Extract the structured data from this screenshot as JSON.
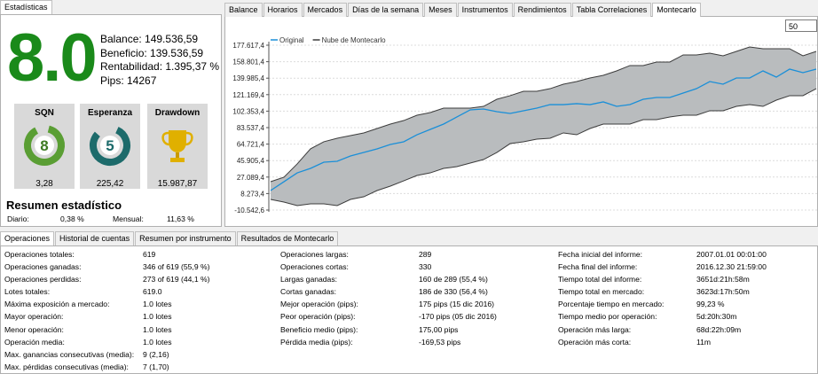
{
  "left_tab": "Estadísticas",
  "score": "8.0",
  "summary": [
    "Balance: 149.536,59",
    "Beneficio: 139.536,59",
    "Rentabilidad: 1.395,37 %",
    "Pips: 14267"
  ],
  "cards": [
    {
      "title": "SQN",
      "badge": "8",
      "value": "3,28"
    },
    {
      "title": "Esperanza",
      "badge": "5",
      "value": "225,42"
    },
    {
      "title": "Drawdown",
      "value": "15.987,87"
    }
  ],
  "resumen": {
    "title": "Resumen estadístico",
    "items": [
      [
        "Diario:",
        "0,38 %"
      ],
      [
        "Mensual:",
        "11,63 %"
      ]
    ]
  },
  "chart_tabs": [
    "Balance",
    "Horarios",
    "Mercados",
    "Días de la semana",
    "Meses",
    "Instrumentos",
    "Rendimientos",
    "Tabla Correlaciones",
    "Montecarlo"
  ],
  "chart_input": "50",
  "bottom_tabs": [
    "Operaciones",
    "Historial de cuentas",
    "Resumen por instrumento",
    "Resultados de Montecarlo"
  ],
  "table": {
    "columns": [
      {
        "rows": [
          [
            "Operaciones totales:",
            "619"
          ],
          [
            "Operaciones ganadas:",
            "346 of 619 (55,9 %)"
          ],
          [
            "Operaciones perdidas:",
            "273 of 619 (44,1 %)"
          ],
          [
            "Lotes totales:",
            "619.0"
          ],
          [
            "Máxima exposición a mercado:",
            "1.0 lotes"
          ],
          [
            "Mayor operación:",
            "1.0 lotes"
          ],
          [
            "Menor operación:",
            "1.0 lotes"
          ],
          [
            "Operación media:",
            "1.0 lotes"
          ],
          [
            "Max. ganancias consecutivas (media):",
            "9 (2,16)"
          ],
          [
            "Max. pérdidas consecutivas (media):",
            "7 (1,70)"
          ]
        ]
      },
      {
        "rows": [
          [
            "Operaciones largas:",
            "289"
          ],
          [
            "Operaciones cortas:",
            "330"
          ],
          [
            "Largas ganadas:",
            "160 de 289 (55,4 %)"
          ],
          [
            "Cortas ganadas:",
            "186 de 330 (56,4 %)"
          ],
          [
            "Mejor operación (pips):",
            "175 pips (15 dic 2016)"
          ],
          [
            "Peor operación (pips):",
            "-170 pips (05 dic 2016)"
          ],
          [
            "Beneficio medio (pips):",
            "175,00 pips"
          ],
          [
            "Pérdida media (pips):",
            "-169,53 pips"
          ]
        ]
      },
      {
        "rows": [
          [
            "Fecha inicial del informe:",
            "2007.01.01 00:01:00"
          ],
          [
            "Fecha final del informe:",
            "2016.12.30 21:59:00"
          ],
          [
            "Tiempo total del informe:",
            "3651d:21h:58m"
          ],
          [
            "Tiempo total en mercado:",
            "3623d:17h:50m"
          ],
          [
            "Porcentaje tiempo en mercado:",
            "99,23 %"
          ],
          [
            "Tiempo medio por operación:",
            "5d:20h:30m"
          ],
          [
            "Operación más larga:",
            "68d:22h:09m"
          ],
          [
            "Operación más corta:",
            "11m"
          ]
        ]
      }
    ]
  },
  "chart_data": {
    "type": "line",
    "categories": [
      null,
      null,
      null,
      null,
      null,
      null,
      null,
      null,
      null,
      null,
      null,
      null,
      null,
      null,
      null,
      null,
      null,
      null,
      null,
      null,
      null,
      null,
      null,
      null,
      null,
      null,
      null,
      null,
      null,
      null,
      null,
      null,
      null,
      null,
      null,
      null,
      null,
      null,
      null,
      null,
      null,
      null
    ],
    "series": [
      {
        "name": "Original",
        "color": "#1a8fd8",
        "values": [
          11700,
          21800,
          31900,
          37000,
          44100,
          45100,
          51200,
          55200,
          59300,
          64300,
          67400,
          75400,
          81500,
          87600,
          95700,
          103800,
          104800,
          101700,
          99700,
          102800,
          105800,
          109800,
          109800,
          110900,
          109800,
          112900,
          107800,
          109800,
          115900,
          117900,
          117900,
          123000,
          128000,
          136100,
          133100,
          140200,
          140200,
          148300,
          141200,
          150300,
          146300,
          150300
        ]
      },
      {
        "name": "Nube de Montecarlo",
        "color": "#3c3c3c",
        "fill": "#b9bcbe",
        "high": [
          21800,
          26900,
          42100,
          59300,
          67400,
          71400,
          74400,
          77500,
          82500,
          87600,
          91600,
          97700,
          100700,
          105800,
          105800,
          105800,
          107800,
          115900,
          120000,
          125000,
          125000,
          128000,
          133100,
          136100,
          140200,
          143200,
          148300,
          154400,
          154400,
          158400,
          158400,
          166500,
          166500,
          168500,
          165500,
          170500,
          175600,
          173600,
          173600,
          173600,
          165500,
          170500
        ],
        "low": [
          1600,
          -1400,
          -5500,
          -3500,
          -3500,
          -5500,
          1600,
          4600,
          11700,
          16800,
          22800,
          28900,
          31900,
          37000,
          39000,
          43100,
          47100,
          55200,
          65300,
          67400,
          70400,
          71400,
          77500,
          75400,
          82500,
          87600,
          87600,
          87600,
          92600,
          92600,
          95700,
          97700,
          97700,
          102800,
          102800,
          107800,
          109800,
          107800,
          114900,
          120000,
          120000,
          128000
        ]
      }
    ],
    "ylim": [
      -10542.6,
      177617.4
    ],
    "yticks": [
      {
        "value": -10542.6,
        "label": "-10.542,6"
      },
      {
        "value": 8273.4,
        "label": "8.273,4"
      },
      {
        "value": 27089.4,
        "label": "27.089,4"
      },
      {
        "value": 45905.4,
        "label": "45.905,4"
      },
      {
        "value": 64721.4,
        "label": "64.721,4"
      },
      {
        "value": 83537.4,
        "label": "83.537,4"
      },
      {
        "value": 102353.4,
        "label": "102.353,4"
      },
      {
        "value": 121169.4,
        "label": "121.169,4"
      },
      {
        "value": 139985.4,
        "label": "139.985,4"
      },
      {
        "value": 158801.4,
        "label": "158.801,4"
      },
      {
        "value": 177617.4,
        "label": "177.617,4"
      }
    ],
    "grid": true,
    "legend": "top-left"
  }
}
